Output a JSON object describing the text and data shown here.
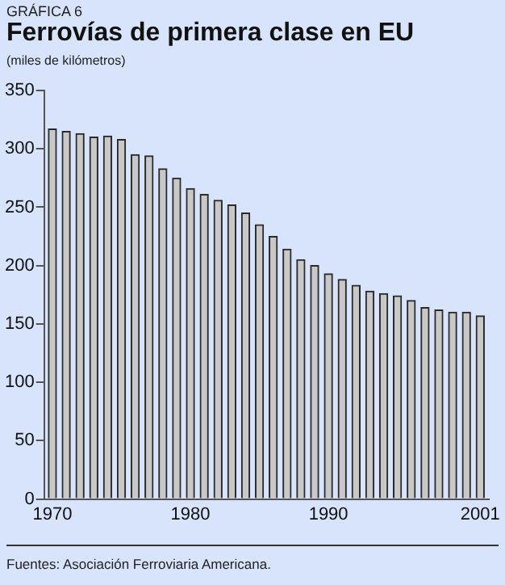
{
  "chart_data": {
    "type": "bar",
    "title": "Ferrovías de primera clase en EU",
    "subtitle": "(miles de kilómetros)",
    "annotations": [
      "GRÁFICA 6",
      "Fuentes:  Asociación Ferroviaria Americana."
    ],
    "x": [
      1970,
      1971,
      1972,
      1973,
      1974,
      1975,
      1976,
      1977,
      1978,
      1979,
      1980,
      1981,
      1982,
      1983,
      1984,
      1985,
      1986,
      1987,
      1988,
      1989,
      1990,
      1991,
      1992,
      1993,
      1994,
      1995,
      1996,
      1997,
      1998,
      1999,
      2000,
      2001
    ],
    "values": [
      317,
      315,
      313,
      310,
      311,
      308,
      295,
      294,
      283,
      275,
      266,
      261,
      256,
      252,
      245,
      235,
      225,
      214,
      205,
      200,
      193,
      188,
      183,
      178,
      176,
      174,
      170,
      164,
      162,
      160,
      160,
      157
    ],
    "color": "#c8c8c8",
    "xlim": [
      1969.4,
      2001.6
    ],
    "xticks": [
      1970,
      1980,
      1990,
      2001
    ],
    "ylim": [
      0,
      350
    ],
    "yticks": [
      0,
      50,
      100,
      150,
      200,
      250,
      300,
      350
    ],
    "grid": false,
    "legend": false
  }
}
